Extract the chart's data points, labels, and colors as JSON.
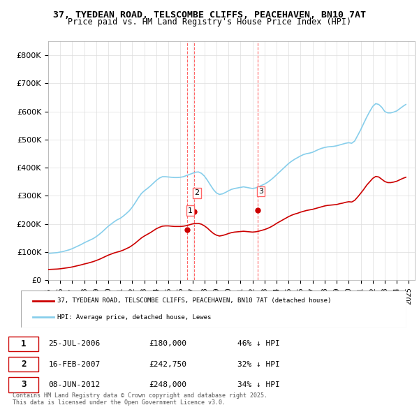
{
  "title_line1": "37, TYEDEAN ROAD, TELSCOMBE CLIFFS, PEACEHAVEN, BN10 7AT",
  "title_line2": "Price paid vs. HM Land Registry's House Price Index (HPI)",
  "ylabel": "",
  "ylim": [
    0,
    850000
  ],
  "yticks": [
    0,
    100000,
    200000,
    300000,
    400000,
    500000,
    600000,
    700000,
    800000
  ],
  "ytick_labels": [
    "£0",
    "£100K",
    "£200K",
    "£300K",
    "£400K",
    "£500K",
    "£600K",
    "£700K",
    "£800K"
  ],
  "hpi_color": "#87CEEB",
  "price_color": "#CC0000",
  "vline_color": "#FF6666",
  "background_color": "#ffffff",
  "legend_label_price": "37, TYEDEAN ROAD, TELSCOMBE CLIFFS, PEACEHAVEN, BN10 7AT (detached house)",
  "legend_label_hpi": "HPI: Average price, detached house, Lewes",
  "transactions": [
    {
      "num": 1,
      "date": 2006.57,
      "price": 180000,
      "label": "1"
    },
    {
      "num": 2,
      "date": 2007.12,
      "price": 242750,
      "label": "2"
    },
    {
      "num": 3,
      "date": 2012.44,
      "price": 248000,
      "label": "3"
    }
  ],
  "transaction_table": [
    {
      "num": "1",
      "date": "25-JUL-2006",
      "price": "£180,000",
      "note": "46% ↓ HPI"
    },
    {
      "num": "2",
      "date": "16-FEB-2007",
      "price": "£242,750",
      "note": "32% ↓ HPI"
    },
    {
      "num": "3",
      "date": "08-JUN-2012",
      "price": "£248,000",
      "note": "34% ↓ HPI"
    }
  ],
  "footer": "Contains HM Land Registry data © Crown copyright and database right 2025.\nThis data is licensed under the Open Government Licence v3.0.",
  "hpi_data": {
    "years": [
      1995.0,
      1995.25,
      1995.5,
      1995.75,
      1996.0,
      1996.25,
      1996.5,
      1996.75,
      1997.0,
      1997.25,
      1997.5,
      1997.75,
      1998.0,
      1998.25,
      1998.5,
      1998.75,
      1999.0,
      1999.25,
      1999.5,
      1999.75,
      2000.0,
      2000.25,
      2000.5,
      2000.75,
      2001.0,
      2001.25,
      2001.5,
      2001.75,
      2002.0,
      2002.25,
      2002.5,
      2002.75,
      2003.0,
      2003.25,
      2003.5,
      2003.75,
      2004.0,
      2004.25,
      2004.5,
      2004.75,
      2005.0,
      2005.25,
      2005.5,
      2005.75,
      2006.0,
      2006.25,
      2006.5,
      2006.75,
      2007.0,
      2007.25,
      2007.5,
      2007.75,
      2008.0,
      2008.25,
      2008.5,
      2008.75,
      2009.0,
      2009.25,
      2009.5,
      2009.75,
      2010.0,
      2010.25,
      2010.5,
      2010.75,
      2011.0,
      2011.25,
      2011.5,
      2011.75,
      2012.0,
      2012.25,
      2012.5,
      2012.75,
      2013.0,
      2013.25,
      2013.5,
      2013.75,
      2014.0,
      2014.25,
      2014.5,
      2014.75,
      2015.0,
      2015.25,
      2015.5,
      2015.75,
      2016.0,
      2016.25,
      2016.5,
      2016.75,
      2017.0,
      2017.25,
      2017.5,
      2017.75,
      2018.0,
      2018.25,
      2018.5,
      2018.75,
      2019.0,
      2019.25,
      2019.5,
      2019.75,
      2020.0,
      2020.25,
      2020.5,
      2020.75,
      2021.0,
      2021.25,
      2021.5,
      2021.75,
      2022.0,
      2022.25,
      2022.5,
      2022.75,
      2023.0,
      2023.25,
      2023.5,
      2023.75,
      2024.0,
      2024.25,
      2024.5,
      2024.75
    ],
    "values": [
      95000,
      96000,
      97000,
      98000,
      100000,
      102000,
      105000,
      108000,
      112000,
      117000,
      122000,
      127000,
      133000,
      138000,
      143000,
      148000,
      155000,
      163000,
      172000,
      182000,
      192000,
      200000,
      208000,
      215000,
      220000,
      228000,
      237000,
      247000,
      260000,
      276000,
      293000,
      308000,
      318000,
      326000,
      335000,
      345000,
      355000,
      363000,
      368000,
      368000,
      367000,
      366000,
      365000,
      365000,
      366000,
      368000,
      372000,
      376000,
      380000,
      384000,
      385000,
      380000,
      370000,
      355000,
      338000,
      322000,
      310000,
      305000,
      307000,
      312000,
      318000,
      323000,
      326000,
      328000,
      330000,
      332000,
      330000,
      328000,
      326000,
      328000,
      332000,
      337000,
      342000,
      348000,
      356000,
      365000,
      375000,
      385000,
      395000,
      405000,
      415000,
      423000,
      430000,
      436000,
      442000,
      447000,
      450000,
      452000,
      455000,
      460000,
      465000,
      469000,
      472000,
      474000,
      475000,
      476000,
      478000,
      481000,
      484000,
      487000,
      489000,
      487000,
      495000,
      515000,
      535000,
      558000,
      580000,
      600000,
      618000,
      628000,
      625000,
      615000,
      600000,
      595000,
      595000,
      598000,
      602000,
      610000,
      618000,
      625000
    ]
  },
  "price_data": {
    "years": [
      1995.0,
      1995.25,
      1995.5,
      1995.75,
      1996.0,
      1996.25,
      1996.5,
      1996.75,
      1997.0,
      1997.25,
      1997.5,
      1997.75,
      1998.0,
      1998.25,
      1998.5,
      1998.75,
      1999.0,
      1999.25,
      1999.5,
      1999.75,
      2000.0,
      2000.25,
      2000.5,
      2000.75,
      2001.0,
      2001.25,
      2001.5,
      2001.75,
      2002.0,
      2002.25,
      2002.5,
      2002.75,
      2003.0,
      2003.25,
      2003.5,
      2003.75,
      2004.0,
      2004.25,
      2004.5,
      2004.75,
      2005.0,
      2005.25,
      2005.5,
      2005.75,
      2006.0,
      2006.25,
      2006.5,
      2006.75,
      2007.0,
      2007.25,
      2007.5,
      2007.75,
      2008.0,
      2008.25,
      2008.5,
      2008.75,
      2009.0,
      2009.25,
      2009.5,
      2009.75,
      2010.0,
      2010.25,
      2010.5,
      2010.75,
      2011.0,
      2011.25,
      2011.5,
      2011.75,
      2012.0,
      2012.25,
      2012.5,
      2012.75,
      2013.0,
      2013.25,
      2013.5,
      2013.75,
      2014.0,
      2014.25,
      2014.5,
      2014.75,
      2015.0,
      2015.25,
      2015.5,
      2015.75,
      2016.0,
      2016.25,
      2016.5,
      2016.75,
      2017.0,
      2017.25,
      2017.5,
      2017.75,
      2018.0,
      2018.25,
      2018.5,
      2018.75,
      2019.0,
      2019.25,
      2019.5,
      2019.75,
      2020.0,
      2020.25,
      2020.5,
      2020.75,
      2021.0,
      2021.25,
      2021.5,
      2021.75,
      2022.0,
      2022.25,
      2022.5,
      2022.75,
      2023.0,
      2023.25,
      2023.5,
      2023.75,
      2024.0,
      2024.25,
      2024.5,
      2024.75
    ],
    "values": [
      38000,
      38500,
      39000,
      39500,
      40500,
      42000,
      43500,
      45000,
      47000,
      49500,
      52000,
      54500,
      57500,
      60000,
      63000,
      66000,
      70000,
      74000,
      79000,
      84000,
      89000,
      93000,
      97000,
      100000,
      103000,
      107000,
      112000,
      117000,
      124000,
      132000,
      141000,
      150000,
      157000,
      163000,
      169000,
      176000,
      183000,
      188000,
      192000,
      193000,
      193000,
      192000,
      191000,
      191000,
      191000,
      192000,
      194000,
      197000,
      200000,
      202000,
      202000,
      199000,
      193000,
      185000,
      175000,
      166000,
      160000,
      157000,
      159000,
      162000,
      166000,
      169000,
      171000,
      172000,
      173000,
      174000,
      173000,
      172000,
      171000,
      172000,
      174000,
      177000,
      180000,
      184000,
      189000,
      195000,
      202000,
      208000,
      214000,
      220000,
      226000,
      231000,
      235000,
      238000,
      242000,
      245000,
      248000,
      250000,
      252000,
      255000,
      258000,
      261000,
      264000,
      266000,
      267000,
      268000,
      269000,
      272000,
      274000,
      277000,
      279000,
      278000,
      284000,
      296000,
      309000,
      323000,
      338000,
      350000,
      362000,
      369000,
      367000,
      359000,
      351000,
      347000,
      347000,
      349000,
      352000,
      357000,
      362000,
      366000
    ]
  }
}
